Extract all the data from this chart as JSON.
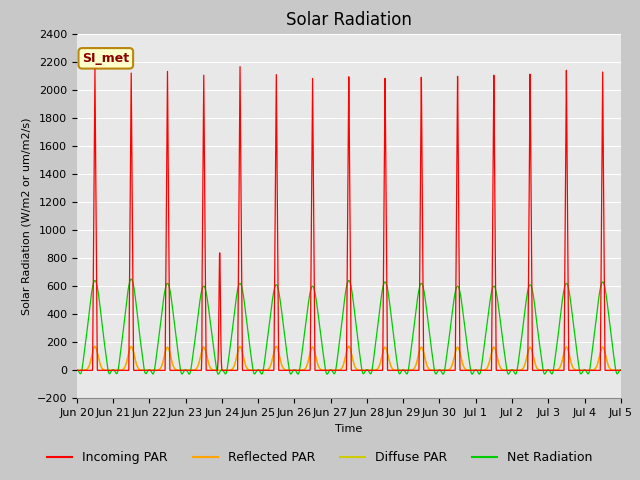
{
  "title": "Solar Radiation",
  "ylabel": "Solar Radiation (W/m2 or um/m2/s)",
  "xlabel": "Time",
  "ylim": [
    -200,
    2400
  ],
  "yticks": [
    -200,
    0,
    200,
    400,
    600,
    800,
    1000,
    1200,
    1400,
    1600,
    1800,
    2000,
    2200,
    2400
  ],
  "annotation_text": "SI_met",
  "annotation_color": "#8B0000",
  "annotation_bg": "#FFFFCC",
  "annotation_border": "#B8860B",
  "colors": {
    "incoming_par": "#FF0000",
    "reflected_par": "#FFA500",
    "diffuse_par": "#CCCC00",
    "net_radiation": "#00CC00"
  },
  "legend_labels": [
    "Incoming PAR",
    "Reflected PAR",
    "Diffuse PAR",
    "Net Radiation"
  ],
  "fig_bg": "#C8C8C8",
  "plot_bg": "#E8E8E8",
  "n_days": 15,
  "peak_incoming": [
    2150,
    2130,
    2150,
    2130,
    2200,
    2150,
    2130,
    2150,
    2130,
    2130,
    2130,
    2130,
    2130,
    2150,
    2130
  ],
  "peak_net": [
    640,
    650,
    620,
    600,
    620,
    610,
    600,
    640,
    630,
    620,
    600,
    600,
    610,
    620,
    630
  ],
  "peak_reflected": [
    170,
    170,
    165,
    165,
    170,
    170,
    165,
    170,
    165,
    165,
    165,
    165,
    165,
    165,
    165
  ],
  "peak_diffuse": [
    170,
    170,
    165,
    165,
    170,
    170,
    165,
    170,
    165,
    165,
    165,
    165,
    165,
    165,
    165
  ],
  "title_fontsize": 12,
  "tick_fontsize": 8,
  "label_fontsize": 8,
  "legend_fontsize": 9
}
